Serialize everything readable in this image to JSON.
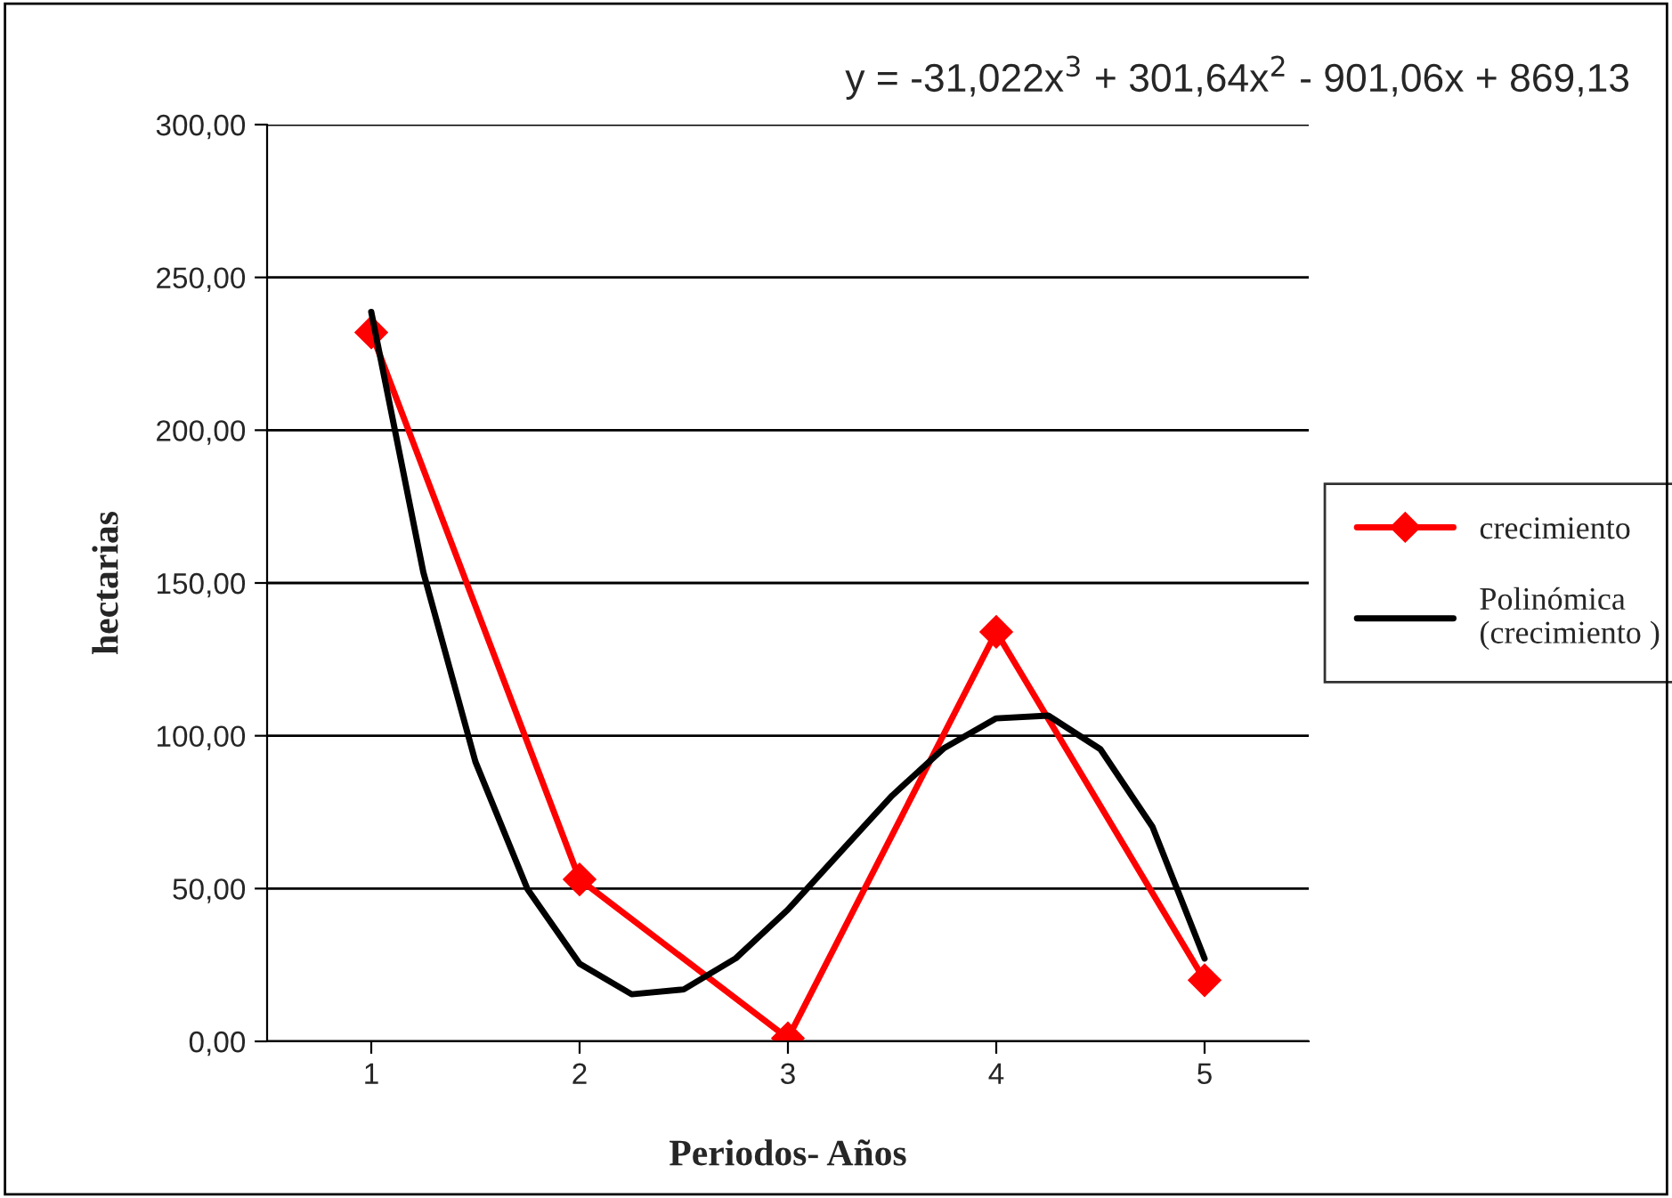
{
  "chart_data": {
    "type": "line",
    "xlabel": "Periodos- Años",
    "ylabel": "hectarias",
    "annotations": [
      "y = -31,022x$^{3}$ + 301,64x$^{2}$ - 901,06x + 869,13"
    ],
    "x": [
      1,
      2,
      3,
      4,
      5
    ],
    "series": [
      {
        "name": "crecimiento",
        "color": "#ff0000",
        "marker": "diamond",
        "values": [
          232,
          53,
          1,
          134,
          20
        ]
      },
      {
        "name": "Polinómica\n(crecimiento )",
        "color": "#000000",
        "marker": "none",
        "x": [
          1,
          1.25,
          1.5,
          1.75,
          2,
          2.25,
          2.5,
          2.75,
          3,
          3.25,
          3.5,
          3.75,
          4,
          4.25,
          4.5,
          4.75,
          5
        ],
        "values": [
          238.7,
          153.5,
          91.5,
          49.8,
          25.4,
          15.4,
          17.0,
          27.2,
          43.1,
          61.8,
          80.4,
          96.0,
          105.7,
          106.6,
          95.6,
          70.2,
          27.1
        ]
      }
    ],
    "xlim": [
      0.5,
      5.5
    ],
    "xticks": [
      1,
      2,
      3,
      4,
      5
    ],
    "ylim": [
      0,
      300
    ],
    "yticks": [
      {
        "value": 0,
        "label": "0,00"
      },
      {
        "value": 50,
        "label": "50,00"
      },
      {
        "value": 100,
        "label": "100,00"
      },
      {
        "value": 150,
        "label": "150,00"
      },
      {
        "value": 200,
        "label": "200,00"
      },
      {
        "value": 250,
        "label": "250,00"
      },
      {
        "value": 300,
        "label": "300,00"
      }
    ],
    "grid": "y",
    "legend": "right",
    "line_style": "solid"
  }
}
